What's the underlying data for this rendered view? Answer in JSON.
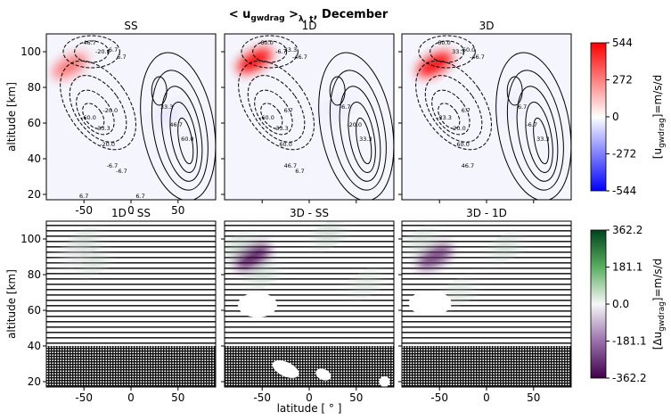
{
  "title": "< u_gwdrag >_λ,t, December",
  "title_parts": {
    "lt": "< ",
    "u": "u",
    "sub": "gwdrag",
    "gt": " >",
    "sub2": "λ, t",
    "rest": ", December"
  },
  "colors": {
    "pos1": "#ff0000",
    "neg1": "#0000ff",
    "pos2": "#00441b",
    "neg2": "#40004b",
    "contour": "#000000"
  },
  "chart_data": [
    {
      "type": "heatmap",
      "title": "SS",
      "ylabel": "altitude [km]",
      "xlim": [
        -90,
        90
      ],
      "ylim": [
        17,
        110
      ],
      "xticks": [
        "-50",
        "0",
        "50"
      ],
      "yticks": [
        "20",
        "40",
        "60",
        "80",
        "100"
      ],
      "contour_labels": [
        "-46.7",
        "-20.0",
        "-6.7",
        "6.7",
        "-60.0",
        "-33.3",
        "-20.0",
        "-6.7",
        "60.0",
        "46.7",
        "33.3",
        "-20.0",
        "-6.7",
        "6.7",
        "6.7"
      ],
      "blobs": [
        {
          "lat": -65,
          "alt": 92,
          "value": 300
        },
        {
          "lat": 40,
          "alt": 65,
          "value": -80
        }
      ]
    },
    {
      "type": "heatmap",
      "title": "1D",
      "xlim": [
        -90,
        90
      ],
      "ylim": [
        17,
        110
      ],
      "contour_labels": [
        "60.0",
        "-6.7",
        "33.3",
        "-46.7",
        "-60.0",
        "-33.3",
        "60.0",
        "46.7",
        "33.3",
        "-20.0",
        "-6.7",
        "6.7",
        "6.7"
      ],
      "blobs": [
        {
          "lat": -58,
          "alt": 95,
          "value": 544
        },
        {
          "lat": 30,
          "alt": 68,
          "value": -60
        }
      ]
    },
    {
      "type": "heatmap",
      "title": "3D",
      "xlim": [
        -90,
        90
      ],
      "ylim": [
        17,
        110
      ],
      "contour_labels": [
        "60.0",
        "33.3",
        "-60.0",
        "-46.7",
        "-33.3",
        "-20.0",
        "60.0",
        "46.7",
        "33.3",
        "-6.7",
        "6.7",
        "6.7"
      ],
      "blobs": [
        {
          "lat": -55,
          "alt": 93,
          "value": 544
        },
        {
          "lat": 30,
          "alt": 70,
          "value": -50
        }
      ]
    },
    {
      "type": "heatmap",
      "title": "1D - SS",
      "ylabel": "altitude [km]",
      "xlim": [
        -90,
        90
      ],
      "ylim": [
        17,
        110
      ],
      "xticks": [
        "-50",
        "0",
        "50"
      ],
      "yticks": [
        "20",
        "40",
        "60",
        "80",
        "100"
      ],
      "blobs": [
        {
          "lat": -50,
          "alt": 98,
          "value": 120
        },
        {
          "lat": -40,
          "alt": 87,
          "value": 110
        },
        {
          "lat": -60,
          "alt": 92,
          "value": -50
        }
      ]
    },
    {
      "type": "heatmap",
      "title": "3D - SS",
      "xlabel": "latitude [ ° ]",
      "xlim": [
        -90,
        90
      ],
      "ylim": [
        17,
        110
      ],
      "xticks": [
        "-50",
        "0",
        "50"
      ],
      "blobs": [
        {
          "lat": -60,
          "alt": 90,
          "value": -362
        },
        {
          "lat": -75,
          "alt": 95,
          "value": 150
        },
        {
          "lat": -50,
          "alt": 80,
          "value": 130
        },
        {
          "lat": 20,
          "alt": 102,
          "value": 140
        },
        {
          "lat": 60,
          "alt": 75,
          "value": 90
        }
      ]
    },
    {
      "type": "heatmap",
      "title": "3D - 1D",
      "xlim": [
        -90,
        90
      ],
      "ylim": [
        17,
        110
      ],
      "xticks": [
        "-50",
        "0",
        "50"
      ],
      "blobs": [
        {
          "lat": -55,
          "alt": 90,
          "value": -300
        },
        {
          "lat": -70,
          "alt": 98,
          "value": 120
        },
        {
          "lat": 20,
          "alt": 95,
          "value": 130
        },
        {
          "lat": -30,
          "alt": 70,
          "value": 90
        }
      ]
    }
  ],
  "colorbars": [
    {
      "label_main": "[u",
      "label_sub": "gwdrag",
      "label_end": "]=m/s/d",
      "ticks": [
        "544",
        "272",
        "0",
        "-272",
        "-544"
      ],
      "range": [
        -544,
        544
      ]
    },
    {
      "label_main": "[Δu",
      "label_sub": "gwdrag",
      "label_end": "]=m/s/d",
      "ticks": [
        "362.2",
        "181.1",
        "0.0",
        "-181.1",
        "-362.2"
      ],
      "range": [
        -362.2,
        362.2
      ]
    }
  ]
}
